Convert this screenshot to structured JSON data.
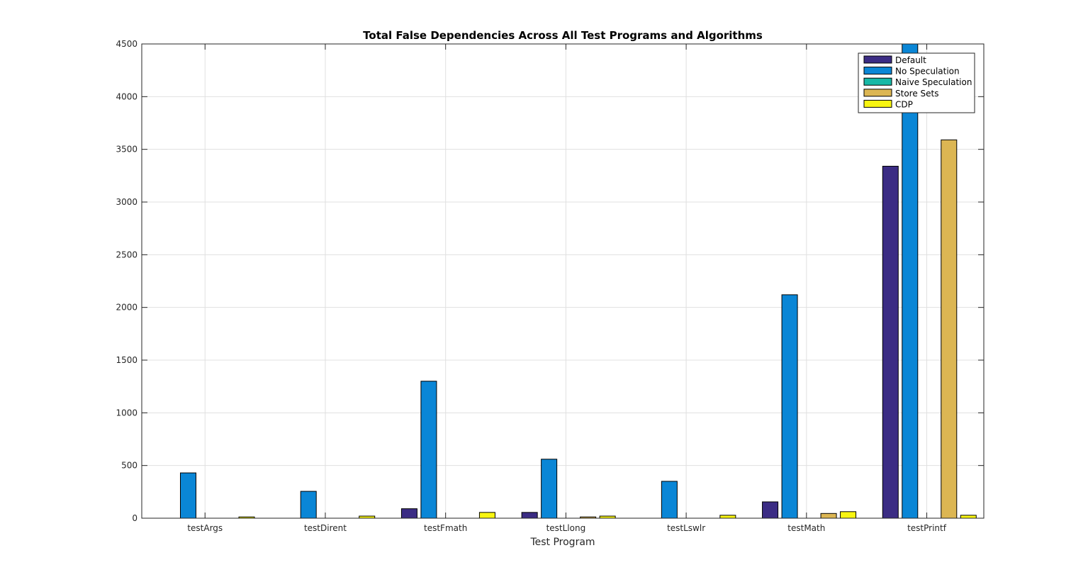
{
  "chart_data": {
    "type": "bar",
    "title": "Total False Dependencies Across All Test Programs and Algorithms",
    "xlabel": "Test Program",
    "ylabel": "",
    "ylim": [
      0,
      4500
    ],
    "yticks": [
      0,
      500,
      1000,
      1500,
      2000,
      2500,
      3000,
      3500,
      4000,
      4500
    ],
    "grid": true,
    "legend_position": "top-right",
    "categories": [
      "testArgs",
      "testDirent",
      "testFmath",
      "testLlong",
      "testLswlr",
      "testMath",
      "testPrintf"
    ],
    "series": [
      {
        "name": "Default",
        "color": "#3b2c84",
        "values": [
          0,
          0,
          90,
          55,
          0,
          155,
          3340
        ]
      },
      {
        "name": "No Speculation",
        "color": "#0a86d6",
        "values": [
          430,
          255,
          1300,
          560,
          350,
          2120,
          4500
        ]
      },
      {
        "name": "Naive Speculation",
        "color": "#17b8a6",
        "values": [
          0,
          0,
          0,
          0,
          0,
          0,
          0
        ]
      },
      {
        "name": "Store Sets",
        "color": "#dcb653",
        "values": [
          0,
          0,
          0,
          12,
          0,
          45,
          3590
        ]
      },
      {
        "name": "CDP",
        "color": "#f8f510",
        "values": [
          12,
          20,
          55,
          20,
          28,
          62,
          28
        ]
      }
    ]
  }
}
